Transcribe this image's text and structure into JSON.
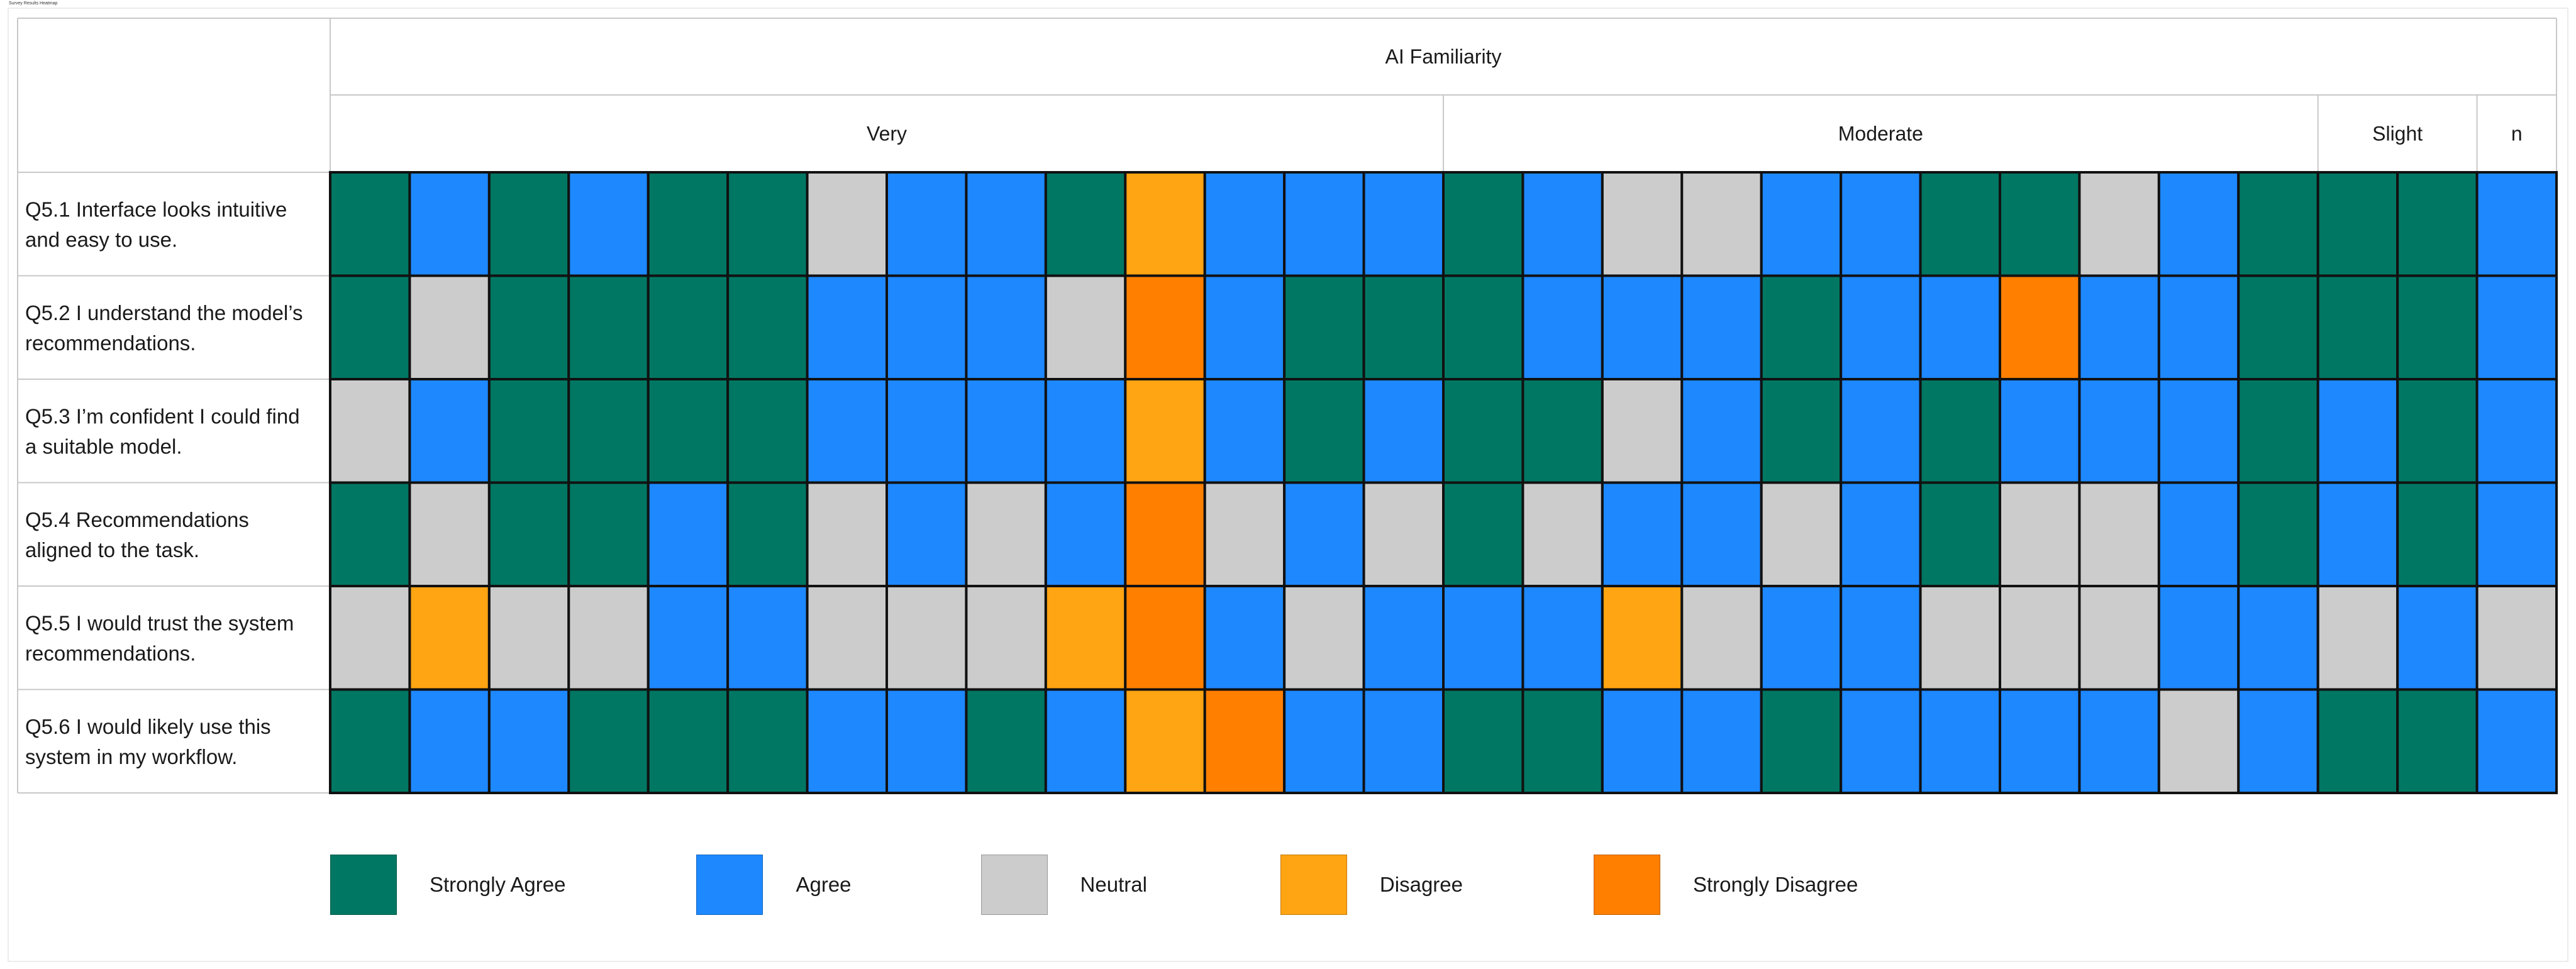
{
  "figure": {
    "small_title": "Survey Results Heatmap"
  },
  "chart_data": {
    "type": "heatmap",
    "title": "",
    "column_group_title": "AI Familiarity",
    "column_groups": [
      {
        "label": "Very",
        "count": 14
      },
      {
        "label": "Moderate",
        "count": 11
      },
      {
        "label": "Slight",
        "count": 2
      },
      {
        "label": "n",
        "count": 1
      }
    ],
    "rows": [
      "Q5.1  Interface looks intuitive and easy to use.",
      "Q5.2  I understand the model’s recommendations.",
      "Q5.3  I’m confident I could find a suitable model.",
      "Q5.4  Recommendations aligned to the task.",
      "Q5.5  I would trust the system recommendations.",
      "Q5.6  I would likely use this system in my workflow."
    ],
    "row_lines": [
      [
        "Q5.1  Interface looks intuitive",
        "and easy to use."
      ],
      [
        "Q5.2  I understand the model’s",
        "recommendations."
      ],
      [
        "Q5.3  I’m confident I could find",
        "a suitable model."
      ],
      [
        "Q5.4  Recommendations",
        "aligned to the task."
      ],
      [
        "Q5.5  I would trust the system",
        "recommendations."
      ],
      [
        "Q5.6  I would likely use this",
        "system in my workflow."
      ]
    ],
    "scale": [
      "Strongly Agree",
      "Agree",
      "Neutral",
      "Disagree",
      "Strongly Disagree"
    ],
    "colors": {
      "Strongly Agree": "#007763",
      "Agree": "#1E88FF",
      "Neutral": "#CCCCCC",
      "Disagree": "#FFA412",
      "Strongly Disagree": "#FF7F00"
    },
    "values": [
      [
        "Strongly Agree",
        "Agree",
        "Strongly Agree",
        "Agree",
        "Strongly Agree",
        "Strongly Agree",
        "Neutral",
        "Agree",
        "Agree",
        "Strongly Agree",
        "Disagree",
        "Agree",
        "Agree",
        "Agree",
        "Strongly Agree",
        "Agree",
        "Neutral",
        "Neutral",
        "Agree",
        "Agree",
        "Strongly Agree",
        "Strongly Agree",
        "Neutral",
        "Agree",
        "Strongly Agree",
        "Strongly Agree",
        "Strongly Agree",
        "Agree"
      ],
      [
        "Strongly Agree",
        "Neutral",
        "Strongly Agree",
        "Strongly Agree",
        "Strongly Agree",
        "Strongly Agree",
        "Agree",
        "Agree",
        "Agree",
        "Neutral",
        "Strongly Disagree",
        "Agree",
        "Strongly Agree",
        "Strongly Agree",
        "Strongly Agree",
        "Agree",
        "Agree",
        "Agree",
        "Strongly Agree",
        "Agree",
        "Agree",
        "Strongly Disagree",
        "Agree",
        "Agree",
        "Strongly Agree",
        "Strongly Agree",
        "Strongly Agree",
        "Agree"
      ],
      [
        "Neutral",
        "Agree",
        "Strongly Agree",
        "Strongly Agree",
        "Strongly Agree",
        "Strongly Agree",
        "Agree",
        "Agree",
        "Agree",
        "Agree",
        "Disagree",
        "Agree",
        "Strongly Agree",
        "Agree",
        "Strongly Agree",
        "Strongly Agree",
        "Neutral",
        "Agree",
        "Strongly Agree",
        "Agree",
        "Strongly Agree",
        "Agree",
        "Agree",
        "Agree",
        "Strongly Agree",
        "Agree",
        "Strongly Agree",
        "Agree"
      ],
      [
        "Strongly Agree",
        "Neutral",
        "Strongly Agree",
        "Strongly Agree",
        "Agree",
        "Strongly Agree",
        "Neutral",
        "Agree",
        "Neutral",
        "Agree",
        "Strongly Disagree",
        "Neutral",
        "Agree",
        "Neutral",
        "Strongly Agree",
        "Neutral",
        "Agree",
        "Agree",
        "Neutral",
        "Agree",
        "Strongly Agree",
        "Neutral",
        "Neutral",
        "Agree",
        "Strongly Agree",
        "Agree",
        "Strongly Agree",
        "Agree"
      ],
      [
        "Neutral",
        "Disagree",
        "Neutral",
        "Neutral",
        "Agree",
        "Agree",
        "Neutral",
        "Neutral",
        "Neutral",
        "Disagree",
        "Strongly Disagree",
        "Agree",
        "Neutral",
        "Agree",
        "Agree",
        "Agree",
        "Disagree",
        "Neutral",
        "Agree",
        "Agree",
        "Neutral",
        "Neutral",
        "Neutral",
        "Agree",
        "Agree",
        "Neutral",
        "Agree",
        "Neutral"
      ],
      [
        "Strongly Agree",
        "Agree",
        "Agree",
        "Strongly Agree",
        "Strongly Agree",
        "Strongly Agree",
        "Agree",
        "Agree",
        "Strongly Agree",
        "Agree",
        "Disagree",
        "Strongly Disagree",
        "Agree",
        "Agree",
        "Strongly Agree",
        "Strongly Agree",
        "Agree",
        "Agree",
        "Strongly Agree",
        "Agree",
        "Agree",
        "Agree",
        "Agree",
        "Neutral",
        "Agree",
        "Strongly Agree",
        "Strongly Agree",
        "Agree"
      ]
    ],
    "legend": {
      "position": "bottom",
      "items": [
        "Strongly Agree",
        "Agree",
        "Neutral",
        "Disagree",
        "Strongly Disagree"
      ]
    }
  }
}
